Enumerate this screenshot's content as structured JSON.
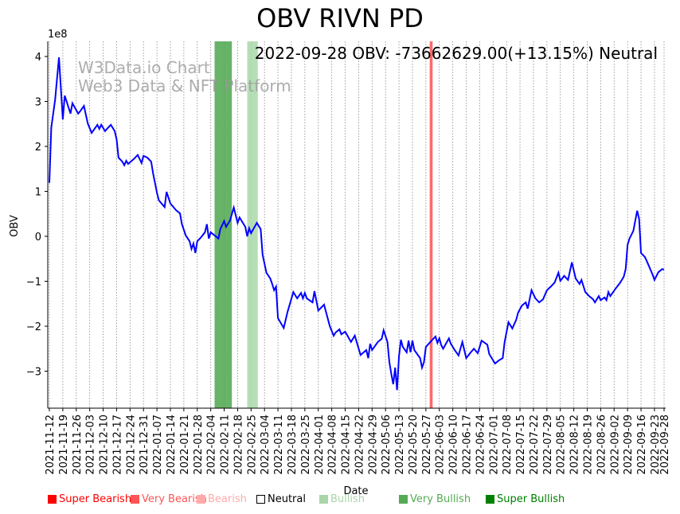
{
  "chart_data": {
    "type": "line",
    "title": "OBV RIVN PD",
    "annotation": "2022-09-28 OBV: -73662629.00(+13.15%) Neutral",
    "watermark": [
      "W3Data.io Chart",
      "Web3 Data & NFT Platform"
    ],
    "xlabel": "Date",
    "ylabel": "OBV",
    "y_scale_label": "1e8",
    "ylim": [
      -3.8,
      4.3
    ],
    "y_ticks": [
      -3,
      -2,
      -1,
      0,
      1,
      2,
      3,
      4
    ],
    "x_start_date": "2021-11-12",
    "x_days_range": [
      0,
      320
    ],
    "x_ticks": [
      {
        "day": 0,
        "label": "2021-11-12"
      },
      {
        "day": 7,
        "label": "2021-11-19"
      },
      {
        "day": 14,
        "label": "2021-11-26"
      },
      {
        "day": 21,
        "label": "2021-12-03"
      },
      {
        "day": 28,
        "label": "2021-12-10"
      },
      {
        "day": 35,
        "label": "2021-12-17"
      },
      {
        "day": 42,
        "label": "2021-12-24"
      },
      {
        "day": 49,
        "label": "2021-12-31"
      },
      {
        "day": 56,
        "label": "2022-01-07"
      },
      {
        "day": 63,
        "label": "2022-01-14"
      },
      {
        "day": 70,
        "label": "2022-01-21"
      },
      {
        "day": 77,
        "label": "2022-01-28"
      },
      {
        "day": 84,
        "label": "2022-02-04"
      },
      {
        "day": 91,
        "label": "2022-02-11"
      },
      {
        "day": 98,
        "label": "2022-02-18"
      },
      {
        "day": 105,
        "label": "2022-02-25"
      },
      {
        "day": 112,
        "label": "2022-03-04"
      },
      {
        "day": 119,
        "label": "2022-03-11"
      },
      {
        "day": 126,
        "label": "2022-03-18"
      },
      {
        "day": 133,
        "label": "2022-03-25"
      },
      {
        "day": 140,
        "label": "2022-04-01"
      },
      {
        "day": 147,
        "label": "2022-04-08"
      },
      {
        "day": 154,
        "label": "2022-04-15"
      },
      {
        "day": 161,
        "label": "2022-04-22"
      },
      {
        "day": 168,
        "label": "2022-04-29"
      },
      {
        "day": 175,
        "label": "2022-05-06"
      },
      {
        "day": 182,
        "label": "2022-05-13"
      },
      {
        "day": 189,
        "label": "2022-05-20"
      },
      {
        "day": 196,
        "label": "2022-05-27"
      },
      {
        "day": 203,
        "label": "2022-06-03"
      },
      {
        "day": 210,
        "label": "2022-06-10"
      },
      {
        "day": 217,
        "label": "2022-06-17"
      },
      {
        "day": 224,
        "label": "2022-06-24"
      },
      {
        "day": 231,
        "label": "2022-07-01"
      },
      {
        "day": 238,
        "label": "2022-07-08"
      },
      {
        "day": 245,
        "label": "2022-07-15"
      },
      {
        "day": 252,
        "label": "2022-07-22"
      },
      {
        "day": 259,
        "label": "2022-07-29"
      },
      {
        "day": 266,
        "label": "2022-08-05"
      },
      {
        "day": 273,
        "label": "2022-08-12"
      },
      {
        "day": 280,
        "label": "2022-08-19"
      },
      {
        "day": 287,
        "label": "2022-08-26"
      },
      {
        "day": 294,
        "label": "2022-09-02"
      },
      {
        "day": 301,
        "label": "2022-09-09"
      },
      {
        "day": 308,
        "label": "2022-09-16"
      },
      {
        "day": 315,
        "label": "2022-09-23"
      },
      {
        "day": 320,
        "label": "2022-09-28"
      }
    ],
    "series": [
      {
        "name": "OBV",
        "color": "#0000ff",
        "unit": "1e8",
        "x_days": [
          0,
          1,
          3,
          5,
          7,
          8,
          11,
          12,
          15,
          16,
          18,
          20,
          22,
          24,
          25,
          26,
          27,
          29,
          30,
          32,
          34,
          35,
          36,
          38,
          39,
          40,
          41,
          44,
          46,
          48,
          49,
          51,
          53,
          54,
          56,
          57,
          60,
          61,
          63,
          66,
          68,
          69,
          71,
          73,
          74,
          75,
          76,
          77,
          79,
          81,
          82,
          83,
          84,
          88,
          89,
          91,
          92,
          94,
          96,
          98,
          99,
          102,
          103,
          104,
          105,
          108,
          110,
          111,
          113,
          115,
          116,
          117,
          118,
          119,
          122,
          124,
          127,
          129,
          131,
          132,
          133,
          134,
          137,
          138,
          140,
          143,
          146,
          148,
          149,
          151,
          152,
          154,
          157,
          159,
          162,
          165,
          166,
          167,
          168,
          171,
          173,
          174,
          176,
          177,
          178,
          179,
          180,
          181,
          182,
          183,
          184,
          186,
          187,
          188,
          189,
          190,
          193,
          194,
          195,
          196,
          199,
          201,
          202,
          203,
          204,
          205,
          208,
          209,
          211,
          213,
          215,
          217,
          219,
          221,
          223,
          225,
          228,
          229,
          232,
          234,
          236,
          237,
          239,
          241,
          243,
          244,
          246,
          248,
          249,
          251,
          253,
          255,
          257,
          259,
          261,
          263,
          265,
          266,
          268,
          270,
          272,
          274,
          276,
          277,
          279,
          281,
          283,
          284,
          286,
          287,
          289,
          290,
          291,
          292,
          295,
          297,
          299,
          300,
          301,
          302,
          304,
          306,
          307,
          308,
          310,
          311,
          314,
          315,
          317,
          319,
          320
        ],
        "values": [
          1.19,
          2.42,
          3.04,
          3.98,
          2.6,
          3.13,
          2.73,
          2.96,
          2.73,
          2.78,
          2.9,
          2.51,
          2.3,
          2.42,
          2.48,
          2.39,
          2.48,
          2.34,
          2.39,
          2.48,
          2.34,
          2.16,
          1.75,
          1.66,
          1.58,
          1.68,
          1.61,
          1.72,
          1.81,
          1.63,
          1.79,
          1.75,
          1.66,
          1.4,
          0.97,
          0.8,
          0.65,
          0.99,
          0.73,
          0.58,
          0.51,
          0.27,
          0.02,
          -0.11,
          -0.28,
          -0.16,
          -0.37,
          -0.11,
          -0.02,
          0.09,
          0.27,
          -0.05,
          0.09,
          -0.05,
          0.16,
          0.34,
          0.21,
          0.35,
          0.64,
          0.3,
          0.42,
          0.21,
          0.0,
          0.18,
          0.07,
          0.3,
          0.16,
          -0.41,
          -0.81,
          -0.94,
          -1.06,
          -1.2,
          -1.12,
          -1.82,
          -2.04,
          -1.68,
          -1.24,
          -1.38,
          -1.26,
          -1.38,
          -1.26,
          -1.38,
          -1.47,
          -1.22,
          -1.65,
          -1.52,
          -2.0,
          -2.21,
          -2.14,
          -2.07,
          -2.18,
          -2.12,
          -2.35,
          -2.21,
          -2.64,
          -2.53,
          -2.71,
          -2.39,
          -2.53,
          -2.35,
          -2.28,
          -2.09,
          -2.35,
          -2.8,
          -3.06,
          -3.29,
          -2.92,
          -3.42,
          -2.67,
          -2.3,
          -2.46,
          -2.58,
          -2.32,
          -2.58,
          -2.32,
          -2.53,
          -2.71,
          -2.92,
          -2.8,
          -2.46,
          -2.32,
          -2.23,
          -2.37,
          -2.27,
          -2.42,
          -2.5,
          -2.27,
          -2.39,
          -2.53,
          -2.65,
          -2.35,
          -2.71,
          -2.6,
          -2.5,
          -2.6,
          -2.32,
          -2.41,
          -2.62,
          -2.83,
          -2.76,
          -2.71,
          -2.35,
          -1.91,
          -2.05,
          -1.86,
          -1.7,
          -1.54,
          -1.47,
          -1.61,
          -1.2,
          -1.38,
          -1.47,
          -1.4,
          -1.2,
          -1.12,
          -1.03,
          -0.81,
          -0.99,
          -0.88,
          -0.97,
          -0.58,
          -0.94,
          -1.06,
          -0.97,
          -1.24,
          -1.33,
          -1.4,
          -1.47,
          -1.33,
          -1.42,
          -1.36,
          -1.42,
          -1.24,
          -1.33,
          -1.15,
          -1.04,
          -0.9,
          -0.73,
          -0.19,
          -0.05,
          0.12,
          0.57,
          0.39,
          -0.37,
          -0.46,
          -0.55,
          -0.85,
          -0.97,
          -0.8,
          -0.73,
          -0.74
        ]
      }
    ],
    "bands": [
      {
        "category": "Very Bullish",
        "start_day": 86,
        "end_day": 95,
        "color": "#4ca64c"
      },
      {
        "category": "Bullish",
        "start_day": 103,
        "end_day": 108.5,
        "color": "#a9d8a9"
      },
      {
        "category": "Super Bearish",
        "start_day": 198,
        "end_day": 199.5,
        "color": "#ff4d4d"
      }
    ],
    "legend": [
      {
        "label": "Super Bearish",
        "color": "#ff0000",
        "text_color": "#ff0000"
      },
      {
        "label": "Very Bearish",
        "color": "#ff5555",
        "text_color": "#ff5555"
      },
      {
        "label": "Bearish",
        "color": "#ffaaaa",
        "text_color": "#ffaaaa"
      },
      {
        "label": "Neutral",
        "color": "none",
        "text_color": "#000000"
      },
      {
        "label": "Bullish",
        "color": "#aad5aa",
        "text_color": "#aad5aa"
      },
      {
        "label": "Very Bullish",
        "color": "#55aa55",
        "text_color": "#55aa55"
      },
      {
        "label": "Super Bullish",
        "color": "#008000",
        "text_color": "#008000"
      }
    ],
    "legend_placement": "bottom",
    "grid": "vertical-dotted"
  }
}
